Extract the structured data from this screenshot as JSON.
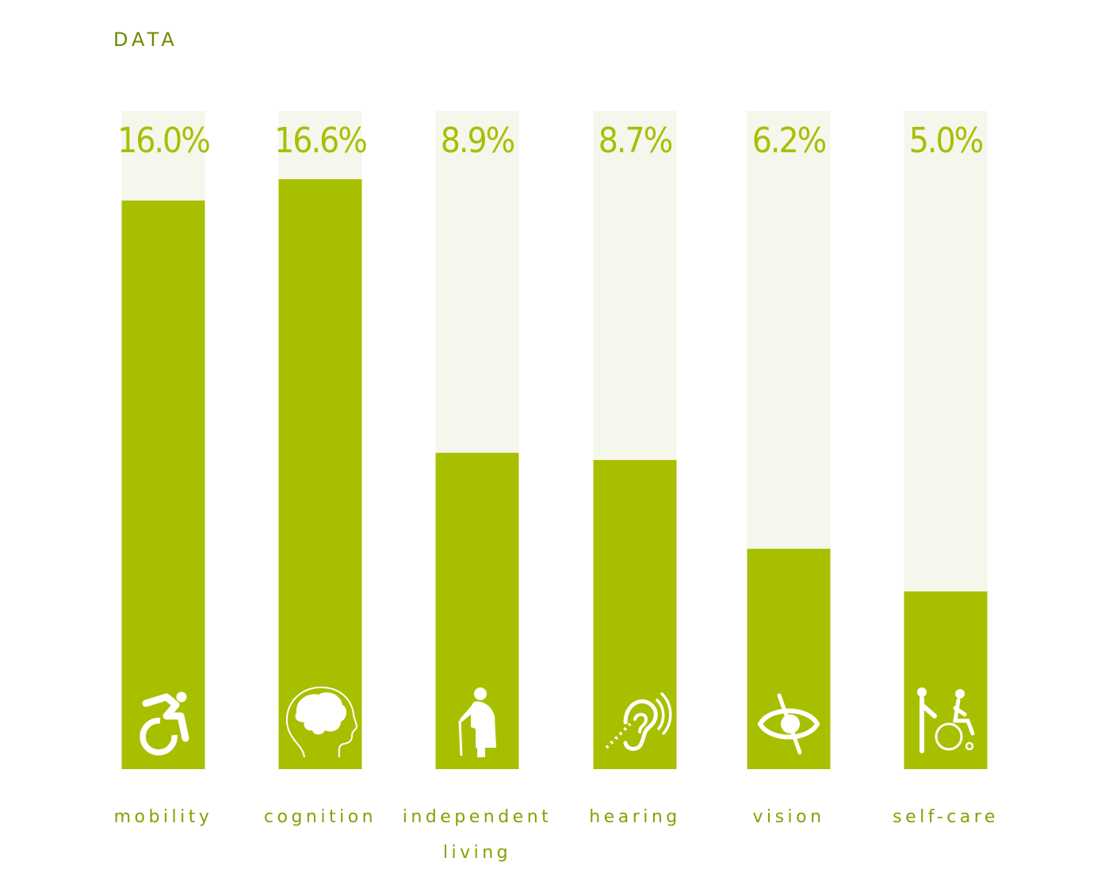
{
  "title": "DATA",
  "colors": {
    "bar": "#a8bf00",
    "track": "#f5f6ec",
    "title": "#6b8a00",
    "label": "#87a000",
    "icon": "#ffffff"
  },
  "chart_data": {
    "type": "bar",
    "title": "DATA",
    "xlabel": "",
    "ylabel": "",
    "ylim": [
      0,
      19.5
    ],
    "grid": false,
    "categories": [
      "mobility",
      "cognition",
      "independent living",
      "hearing",
      "vision",
      "self-care"
    ],
    "category_lines": [
      [
        "mobility"
      ],
      [
        "cognition"
      ],
      [
        "independent",
        "living"
      ],
      [
        "hearing"
      ],
      [
        "vision"
      ],
      [
        "self-care"
      ]
    ],
    "values": [
      16.0,
      16.6,
      8.9,
      8.7,
      6.2,
      5.0
    ],
    "value_labels": [
      "16.0%",
      "16.6%",
      "8.9%",
      "8.7%",
      "6.2%",
      "5.0%"
    ],
    "icons": [
      "wheelchair-icon",
      "brain-icon",
      "elderly-cane-icon",
      "hearing-icon",
      "vision-impaired-icon",
      "caregiver-wheelchair-icon"
    ]
  }
}
